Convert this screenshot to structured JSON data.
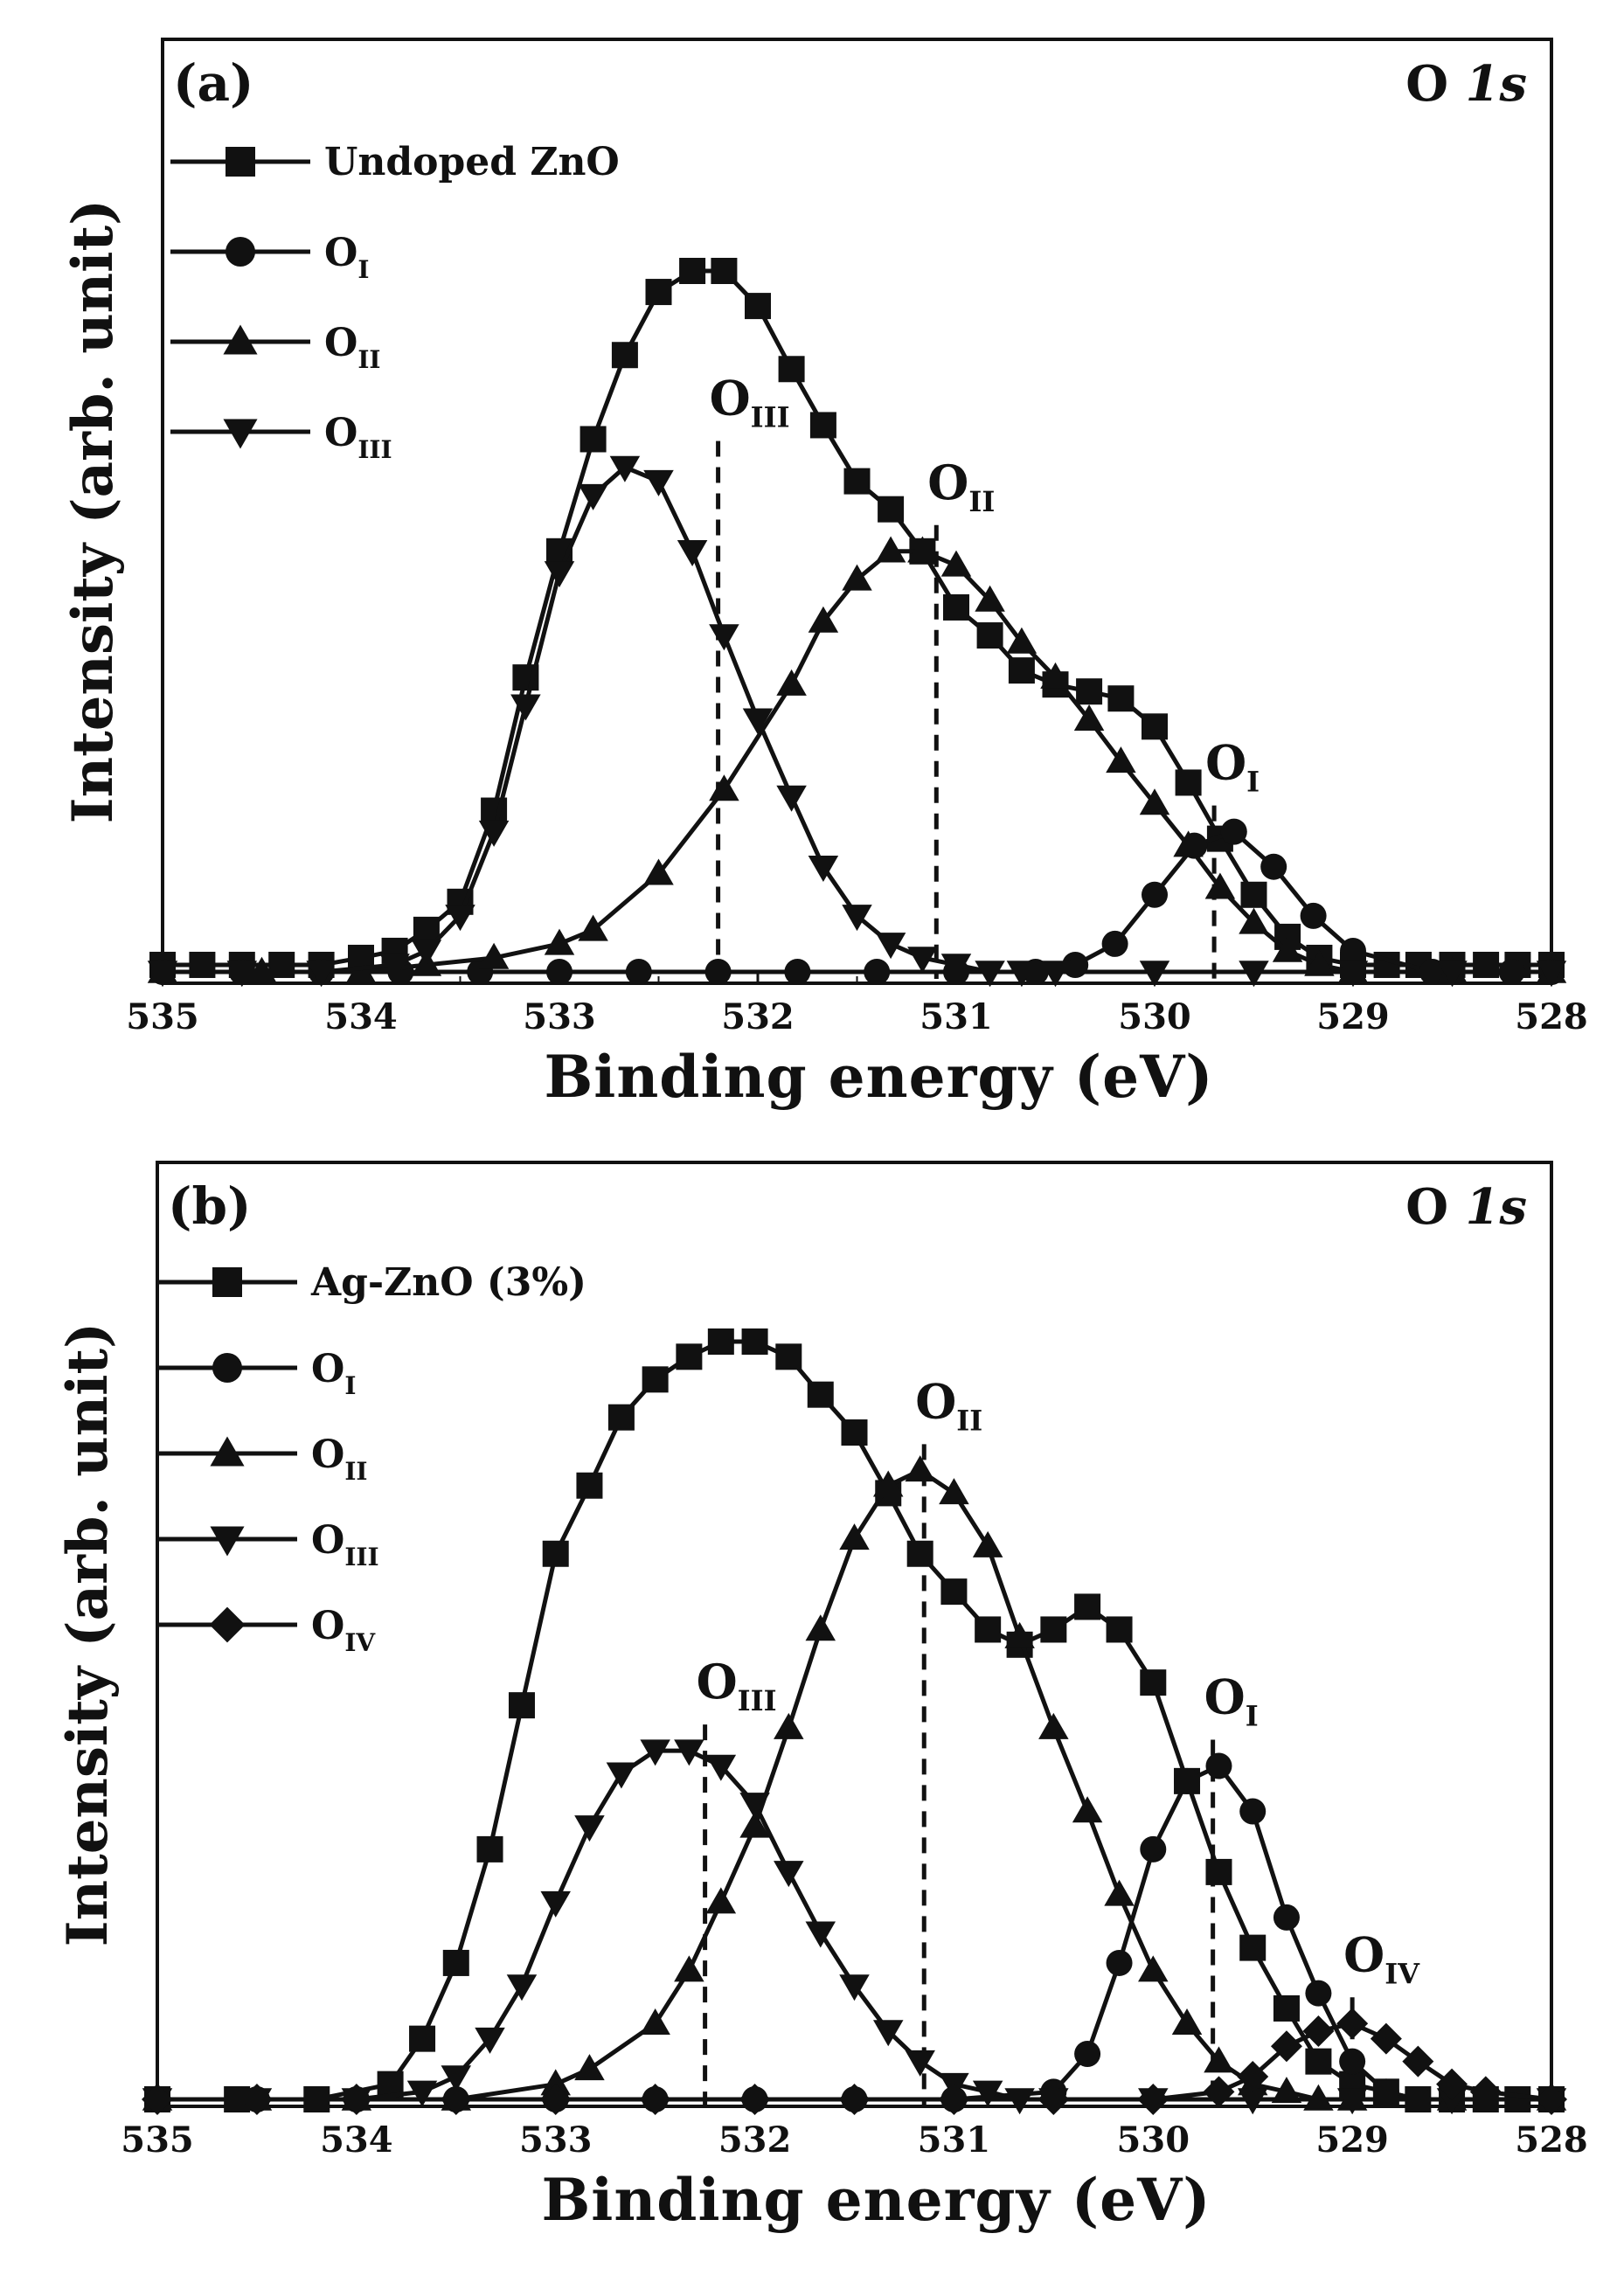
{
  "chart_data": [
    {
      "type": "line",
      "panel_label": "(a)",
      "title": "O 1s",
      "title_main": "O ",
      "title_italic": "1s",
      "xlabel": "Binding energy (eV)",
      "ylabel": "Intensity (arb. unit)",
      "xlim": [
        535,
        528
      ],
      "x_reversed": true,
      "x_ticks": [
        "535",
        "534",
        "533",
        "532",
        "531",
        "530",
        "529",
        "528"
      ],
      "y_tick_labels": false,
      "grid": false,
      "legend_position": "top-left",
      "series": [
        {
          "name": "Undoped ZnO",
          "marker": "square",
          "x": [
            535.0,
            534.8,
            534.6,
            534.4,
            534.2,
            534.0,
            533.83,
            533.67,
            533.5,
            533.33,
            533.17,
            533.0,
            532.83,
            532.67,
            532.5,
            532.33,
            532.17,
            532.0,
            531.83,
            531.67,
            531.5,
            531.33,
            531.17,
            531.0,
            530.83,
            530.67,
            530.5,
            530.33,
            530.17,
            530.0,
            529.83,
            529.67,
            529.5,
            529.33,
            529.17,
            529.0,
            528.83,
            528.67,
            528.5,
            528.33,
            528.17,
            528.0
          ],
          "y": [
            0.01,
            0.01,
            0.01,
            0.01,
            0.01,
            0.02,
            0.03,
            0.06,
            0.1,
            0.23,
            0.42,
            0.6,
            0.76,
            0.88,
            0.97,
            1.0,
            1.0,
            0.95,
            0.86,
            0.78,
            0.7,
            0.66,
            0.6,
            0.52,
            0.48,
            0.43,
            0.41,
            0.4,
            0.39,
            0.35,
            0.27,
            0.19,
            0.11,
            0.05,
            0.02,
            0.01,
            0.01,
            0.01,
            0.01,
            0.01,
            0.01,
            0.01
          ]
        },
        {
          "name": "O_I",
          "marker": "circle",
          "x": [
            535.0,
            534.6,
            534.2,
            533.8,
            533.4,
            533.0,
            532.6,
            532.2,
            531.8,
            531.4,
            531.0,
            530.6,
            530.4,
            530.2,
            530.0,
            529.8,
            529.6,
            529.4,
            529.2,
            529.0,
            528.6,
            528.2,
            528.0
          ],
          "y": [
            0.0,
            0.0,
            0.0,
            0.0,
            0.0,
            0.0,
            0.0,
            0.0,
            0.0,
            0.0,
            0.0,
            0.0,
            0.01,
            0.04,
            0.11,
            0.18,
            0.2,
            0.15,
            0.08,
            0.03,
            0.0,
            0.0,
            0.0
          ]
        },
        {
          "name": "O_II",
          "marker": "triangle-up",
          "x": [
            535.0,
            534.5,
            534.0,
            533.67,
            533.33,
            533.0,
            532.83,
            532.5,
            532.17,
            531.83,
            531.67,
            531.5,
            531.33,
            531.17,
            531.0,
            530.83,
            530.67,
            530.5,
            530.33,
            530.17,
            530.0,
            529.83,
            529.67,
            529.5,
            529.33,
            529.17,
            529.0,
            528.5,
            528.0
          ],
          "y": [
            0.0,
            0.0,
            0.0,
            0.01,
            0.02,
            0.04,
            0.06,
            0.14,
            0.26,
            0.41,
            0.5,
            0.56,
            0.6,
            0.6,
            0.58,
            0.53,
            0.47,
            0.42,
            0.36,
            0.3,
            0.24,
            0.18,
            0.12,
            0.07,
            0.03,
            0.01,
            0.0,
            0.0,
            0.0
          ]
        },
        {
          "name": "O_III",
          "marker": "triangle-down",
          "x": [
            535.0,
            534.6,
            534.2,
            533.83,
            533.67,
            533.5,
            533.33,
            533.17,
            533.0,
            532.83,
            532.67,
            532.5,
            532.33,
            532.17,
            532.0,
            531.83,
            531.67,
            531.5,
            531.33,
            531.17,
            531.0,
            530.83,
            530.67,
            530.5,
            530.0,
            529.5,
            529.0,
            528.5,
            528.0
          ],
          "y": [
            0.0,
            0.0,
            0.0,
            0.01,
            0.03,
            0.08,
            0.2,
            0.38,
            0.57,
            0.68,
            0.72,
            0.7,
            0.6,
            0.48,
            0.36,
            0.25,
            0.15,
            0.08,
            0.04,
            0.02,
            0.01,
            0.0,
            0.0,
            0.0,
            0.0,
            0.0,
            0.0,
            0.0,
            0.0
          ]
        }
      ],
      "annotations": [
        {
          "base": "O",
          "sub": "III",
          "x": 532.2
        },
        {
          "base": "O",
          "sub": "II",
          "x": 531.1
        },
        {
          "base": "O",
          "sub": "I",
          "x": 529.7
        }
      ]
    },
    {
      "type": "line",
      "panel_label": "(b)",
      "title": "O 1s",
      "title_main": "O ",
      "title_italic": "1s",
      "xlabel": "Binding energy (eV)",
      "ylabel": "Intensity (arb. unit)",
      "xlim": [
        535,
        528
      ],
      "x_reversed": true,
      "x_ticks": [
        "535",
        "534",
        "533",
        "532",
        "531",
        "530",
        "529",
        "528"
      ],
      "y_tick_labels": false,
      "grid": false,
      "legend_position": "top-left",
      "series": [
        {
          "name": "Ag-ZnO (3%)",
          "marker": "square",
          "x": [
            535.0,
            534.6,
            534.2,
            533.83,
            533.67,
            533.5,
            533.33,
            533.17,
            533.0,
            532.83,
            532.67,
            532.5,
            532.33,
            532.17,
            532.0,
            531.83,
            531.67,
            531.5,
            531.33,
            531.17,
            531.0,
            530.83,
            530.67,
            530.5,
            530.33,
            530.17,
            530.0,
            529.83,
            529.67,
            529.5,
            529.33,
            529.17,
            529.0,
            528.83,
            528.67,
            528.5,
            528.33,
            528.17,
            528.0
          ],
          "y": [
            0.0,
            0.0,
            0.0,
            0.02,
            0.08,
            0.18,
            0.33,
            0.52,
            0.72,
            0.81,
            0.9,
            0.95,
            0.98,
            1.0,
            1.0,
            0.98,
            0.93,
            0.88,
            0.8,
            0.72,
            0.67,
            0.62,
            0.6,
            0.62,
            0.65,
            0.62,
            0.55,
            0.42,
            0.3,
            0.2,
            0.12,
            0.05,
            0.02,
            0.01,
            0.0,
            0.0,
            0.0,
            0.0,
            0.0
          ]
        },
        {
          "name": "O_I",
          "marker": "circle",
          "x": [
            535.0,
            534.5,
            534.0,
            533.5,
            533.0,
            532.5,
            532.0,
            531.5,
            531.0,
            530.5,
            530.33,
            530.17,
            530.0,
            529.83,
            529.67,
            529.5,
            529.33,
            529.17,
            529.0,
            528.83,
            528.67,
            528.5,
            528.0
          ],
          "y": [
            0.0,
            0.0,
            0.0,
            0.0,
            0.0,
            0.0,
            0.0,
            0.0,
            0.0,
            0.01,
            0.06,
            0.18,
            0.33,
            0.42,
            0.44,
            0.38,
            0.24,
            0.14,
            0.05,
            0.01,
            0.0,
            0.0,
            0.0
          ]
        },
        {
          "name": "O_II",
          "marker": "triangle-up",
          "x": [
            535.0,
            534.5,
            534.0,
            533.5,
            533.0,
            532.83,
            532.5,
            532.33,
            532.17,
            532.0,
            531.83,
            531.67,
            531.5,
            531.33,
            531.17,
            531.0,
            530.83,
            530.67,
            530.5,
            530.33,
            530.17,
            530.0,
            529.83,
            529.67,
            529.5,
            529.33,
            529.17,
            529.0,
            528.5,
            528.0
          ],
          "y": [
            0.0,
            0.0,
            0.0,
            0.0,
            0.02,
            0.04,
            0.1,
            0.17,
            0.26,
            0.36,
            0.49,
            0.62,
            0.74,
            0.81,
            0.83,
            0.8,
            0.73,
            0.61,
            0.49,
            0.38,
            0.27,
            0.17,
            0.1,
            0.05,
            0.02,
            0.01,
            0.0,
            0.0,
            0.0,
            0.0
          ]
        },
        {
          "name": "O_III",
          "marker": "triangle-down",
          "x": [
            535.0,
            534.5,
            534.0,
            533.67,
            533.5,
            533.33,
            533.17,
            533.0,
            532.83,
            532.67,
            532.5,
            532.33,
            532.17,
            532.0,
            531.83,
            531.67,
            531.5,
            531.33,
            531.17,
            531.0,
            530.83,
            530.67,
            530.5,
            530.0,
            529.5,
            529.0,
            528.5,
            528.0
          ],
          "y": [
            0.0,
            0.0,
            0.0,
            0.01,
            0.03,
            0.08,
            0.15,
            0.26,
            0.36,
            0.43,
            0.46,
            0.46,
            0.44,
            0.39,
            0.3,
            0.22,
            0.15,
            0.09,
            0.05,
            0.02,
            0.01,
            0.0,
            0.0,
            0.0,
            0.0,
            0.0,
            0.0,
            0.0
          ]
        },
        {
          "name": "O_IV",
          "marker": "diamond",
          "x": [
            535.0,
            534.5,
            534.0,
            533.5,
            533.0,
            532.5,
            532.0,
            531.5,
            531.0,
            530.5,
            530.0,
            529.67,
            529.5,
            529.33,
            529.17,
            529.0,
            528.83,
            528.67,
            528.5,
            528.33,
            528.0
          ],
          "y": [
            0.0,
            0.0,
            0.0,
            0.0,
            0.0,
            0.0,
            0.0,
            0.0,
            0.0,
            0.0,
            0.0,
            0.01,
            0.03,
            0.07,
            0.09,
            0.1,
            0.08,
            0.05,
            0.02,
            0.01,
            0.0
          ]
        }
      ],
      "annotations": [
        {
          "base": "O",
          "sub": "III",
          "x": 532.25
        },
        {
          "base": "O",
          "sub": "II",
          "x": 531.15
        },
        {
          "base": "O",
          "sub": "I",
          "x": 529.7
        },
        {
          "base": "O",
          "sub": "IV",
          "x": 529.0
        }
      ]
    }
  ]
}
